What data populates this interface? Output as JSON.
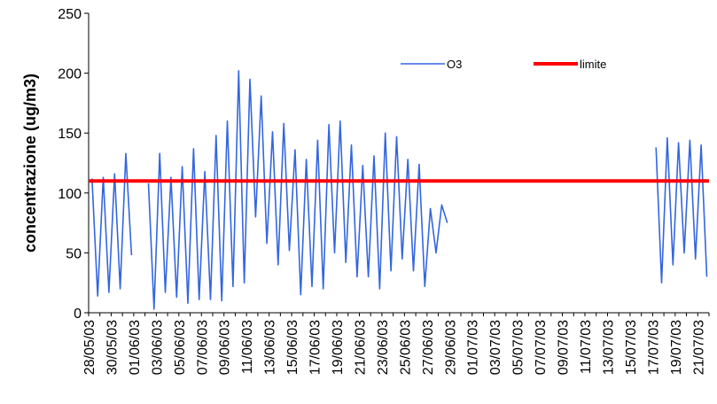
{
  "chart_data": {
    "type": "line",
    "ylabel": "concentrazione (ug/m3)",
    "xlabel": "",
    "ylim": [
      0,
      250
    ],
    "yticks": [
      0,
      50,
      100,
      150,
      200,
      250
    ],
    "x_start": "28/05/03",
    "x_end": "22/07/03",
    "x_tick_labels": [
      "28/05/03",
      "30/05/03",
      "01/06/03",
      "03/06/03",
      "05/06/03",
      "07/06/03",
      "09/06/03",
      "11/06/03",
      "13/06/03",
      "15/06/03",
      "17/06/03",
      "19/06/03",
      "21/06/03",
      "23/06/03",
      "25/06/03",
      "27/06/03",
      "29/06/03",
      "01/07/03",
      "03/07/03",
      "05/07/03",
      "07/07/03",
      "09/07/03",
      "11/07/03",
      "13/07/03",
      "15/07/03",
      "17/07/03",
      "19/07/03",
      "21/07/03"
    ],
    "grid": false,
    "legend_position": "top-right",
    "colors": {
      "o3": "#3366e0",
      "limite": "#ff0000"
    },
    "series": [
      {
        "name": "O3",
        "segments": [
          {
            "start": "28/05/03",
            "daily": [
              [
                112,
                14
              ],
              [
                113,
                17
              ],
              [
                116,
                20
              ],
              [
                133,
                48
              ]
            ]
          },
          {
            "start": "02/06/03",
            "daily": [
              [
                108,
                3
              ],
              [
                133,
                17
              ],
              [
                113,
                13
              ],
              [
                122,
                8
              ],
              [
                137,
                11
              ],
              [
                118,
                11
              ],
              [
                148,
                10
              ],
              [
                160,
                22
              ],
              [
                202,
                25
              ],
              [
                195,
                80
              ],
              [
                181,
                58
              ],
              [
                151,
                40
              ],
              [
                158,
                52
              ],
              [
                136,
                15
              ],
              [
                128,
                22
              ],
              [
                144,
                20
              ],
              [
                157,
                50
              ],
              [
                160,
                42
              ],
              [
                140,
                30
              ],
              [
                123,
                30
              ],
              [
                131,
                20
              ],
              [
                150,
                35
              ],
              [
                147,
                45
              ],
              [
                128,
                35
              ],
              [
                124,
                22
              ],
              [
                87,
                50
              ],
              [
                90,
                75
              ]
            ]
          },
          {
            "start": "17/07/03",
            "daily": [
              [
                138,
                25
              ],
              [
                146,
                40
              ],
              [
                142,
                50
              ],
              [
                144,
                45
              ],
              [
                140,
                30
              ]
            ]
          }
        ]
      },
      {
        "name": "limite",
        "value": 110
      }
    ]
  }
}
